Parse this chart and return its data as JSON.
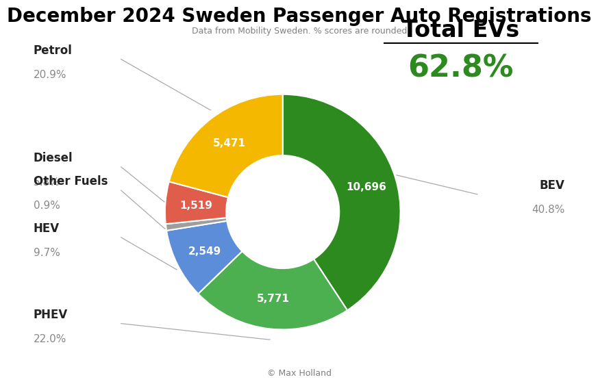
{
  "title": "December 2024 Sweden Passenger Auto Registrations",
  "subtitle": "Data from Mobility Sweden. % scores are rounded",
  "footer": "© Max Holland",
  "total_evs_label": "Total EVs",
  "total_evs_value": "62.8%",
  "segments": [
    {
      "label": "BEV",
      "value": 10696,
      "pct": "40.8%",
      "color": "#2d8a1f"
    },
    {
      "label": "PHEV",
      "value": 5771,
      "pct": "22.0%",
      "color": "#4caf50"
    },
    {
      "label": "HEV",
      "value": 2549,
      "pct": "9.7%",
      "color": "#5b8dd9"
    },
    {
      "label": "Other Fuels",
      "value": 236,
      "pct": "0.9%",
      "color": "#9e9e9e"
    },
    {
      "label": "Diesel",
      "value": 1519,
      "pct": "5.8%",
      "color": "#e05c4b"
    },
    {
      "label": "Petrol",
      "value": 5471,
      "pct": "20.9%",
      "color": "#f5b800"
    }
  ],
  "background_color": "#ffffff",
  "title_fontsize": 20,
  "subtitle_fontsize": 9,
  "value_label_fontsize": 11,
  "side_label_name_fontsize": 12,
  "side_label_pct_fontsize": 11,
  "total_evs_label_fontsize": 24,
  "total_evs_pct_fontsize": 32
}
